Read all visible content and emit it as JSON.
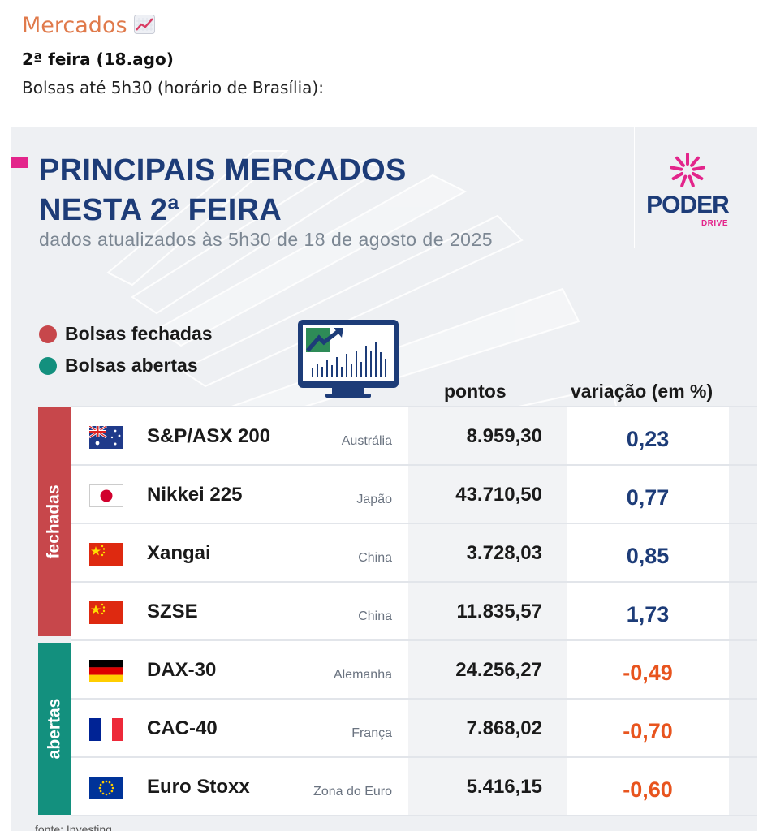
{
  "header": {
    "title": "Mercados",
    "title_icon": "chart-increasing-icon",
    "date": "2ª feira (18.ago)",
    "description": "Bolsas até 5h30 (horário de Brasília):"
  },
  "card": {
    "headline_line1": "PRINCIPAIS MERCADOS",
    "headline_line2": "NESTA 2ª FEIRA",
    "subtitle": "dados atualizados às 5h30 de 18 de agosto de 2025",
    "logo_word": "PODER",
    "logo_sub": "DRIVE",
    "legend": [
      {
        "label": "Bolsas fechadas",
        "color": "#c7474b"
      },
      {
        "label": "Bolsas abertas",
        "color": "#13907e"
      }
    ],
    "columns": {
      "points": "pontos",
      "variation": "variação (em %)"
    },
    "groups": [
      {
        "label": "fechadas",
        "color": "#c7474b"
      },
      {
        "label": "abertas",
        "color": "#13907e"
      }
    ],
    "rows": [
      {
        "name": "S&P/ASX 200",
        "country": "Austrália",
        "points": "8.959,30",
        "variation": "0,23",
        "flag": "australia-flag-icon"
      },
      {
        "name": "Nikkei 225",
        "country": "Japão",
        "points": "43.710,50",
        "variation": "0,77",
        "flag": "japan-flag-icon"
      },
      {
        "name": "Xangai",
        "country": "China",
        "points": "3.728,03",
        "variation": "0,85",
        "flag": "china-flag-icon"
      },
      {
        "name": "SZSE",
        "country": "China",
        "points": "11.835,57",
        "variation": "1,73",
        "flag": "china-flag-icon"
      },
      {
        "name": "DAX-30",
        "country": "Alemanha",
        "points": "24.256,27",
        "variation": "-0,49",
        "flag": "germany-flag-icon"
      },
      {
        "name": "CAC-40",
        "country": "França",
        "points": "7.868,02",
        "variation": "-0,70",
        "flag": "france-flag-icon"
      },
      {
        "name": "Euro Stoxx",
        "country": "Zona do Euro",
        "points": "5.416,15",
        "variation": "-0,60",
        "flag": "eu-flag-icon"
      }
    ],
    "colors": {
      "positive": "#1d3c78",
      "negative": "#e8541e",
      "brand_navy": "#1d3c78",
      "brand_pink": "#e3258b"
    },
    "source": "fonte: Investing"
  }
}
